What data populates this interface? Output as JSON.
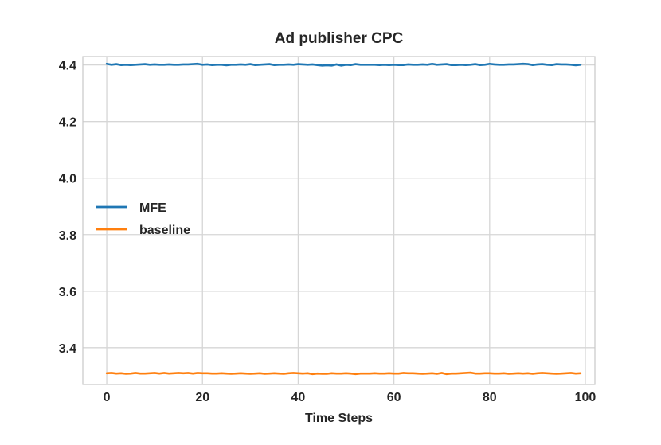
{
  "chart_data": {
    "type": "line",
    "title": "Ad publisher CPC",
    "xlabel": "Time Steps",
    "ylabel": "",
    "xlim": [
      -5,
      102
    ],
    "ylim": [
      3.27,
      4.43
    ],
    "x_ticks": [
      0,
      20,
      40,
      60,
      80,
      100
    ],
    "y_ticks": [
      3.4,
      3.6,
      3.8,
      4.0,
      4.2,
      4.4
    ],
    "x_tick_labels": [
      "0",
      "20",
      "40",
      "60",
      "80",
      "100"
    ],
    "y_tick_labels": [
      "3.4",
      "3.6",
      "3.8",
      "4.0",
      "4.2",
      "4.4"
    ],
    "grid": true,
    "legend_position": "center-left",
    "x": [
      0,
      1,
      2,
      3,
      4,
      5,
      6,
      7,
      8,
      9,
      10,
      11,
      12,
      13,
      14,
      15,
      16,
      17,
      18,
      19,
      20,
      21,
      22,
      23,
      24,
      25,
      26,
      27,
      28,
      29,
      30,
      31,
      32,
      33,
      34,
      35,
      36,
      37,
      38,
      39,
      40,
      41,
      42,
      43,
      44,
      45,
      46,
      47,
      48,
      49,
      50,
      51,
      52,
      53,
      54,
      55,
      56,
      57,
      58,
      59,
      60,
      61,
      62,
      63,
      64,
      65,
      66,
      67,
      68,
      69,
      70,
      71,
      72,
      73,
      74,
      75,
      76,
      77,
      78,
      79,
      80,
      81,
      82,
      83,
      84,
      85,
      86,
      87,
      88,
      89,
      90,
      91,
      92,
      93,
      94,
      95,
      96,
      97,
      98,
      99
    ],
    "series": [
      {
        "name": "MFE",
        "color": "#1f77b4",
        "values": [
          4.404,
          4.401,
          4.403,
          4.4,
          4.401,
          4.4,
          4.401,
          4.402,
          4.403,
          4.401,
          4.402,
          4.401,
          4.401,
          4.402,
          4.401,
          4.401,
          4.402,
          4.402,
          4.403,
          4.404,
          4.401,
          4.402,
          4.4,
          4.401,
          4.401,
          4.399,
          4.401,
          4.401,
          4.402,
          4.401,
          4.403,
          4.4,
          4.401,
          4.402,
          4.403,
          4.4,
          4.401,
          4.401,
          4.402,
          4.401,
          4.403,
          4.402,
          4.401,
          4.402,
          4.4,
          4.398,
          4.399,
          4.398,
          4.402,
          4.398,
          4.401,
          4.4,
          4.403,
          4.401,
          4.401,
          4.401,
          4.401,
          4.4,
          4.401,
          4.4,
          4.401,
          4.4,
          4.4,
          4.402,
          4.401,
          4.401,
          4.402,
          4.401,
          4.404,
          4.401,
          4.402,
          4.403,
          4.4,
          4.4,
          4.401,
          4.4,
          4.401,
          4.403,
          4.4,
          4.401,
          4.404,
          4.402,
          4.401,
          4.401,
          4.402,
          4.402,
          4.403,
          4.404,
          4.403,
          4.4,
          4.402,
          4.403,
          4.401,
          4.4,
          4.403,
          4.402,
          4.402,
          4.401,
          4.399,
          4.401
        ]
      },
      {
        "name": "baseline",
        "color": "#ff7f0e",
        "values": [
          3.31,
          3.311,
          3.309,
          3.31,
          3.308,
          3.309,
          3.311,
          3.309,
          3.309,
          3.31,
          3.311,
          3.309,
          3.311,
          3.309,
          3.31,
          3.311,
          3.31,
          3.311,
          3.309,
          3.311,
          3.31,
          3.31,
          3.309,
          3.309,
          3.31,
          3.309,
          3.308,
          3.309,
          3.31,
          3.309,
          3.308,
          3.309,
          3.31,
          3.308,
          3.309,
          3.31,
          3.309,
          3.308,
          3.31,
          3.311,
          3.31,
          3.309,
          3.31,
          3.307,
          3.309,
          3.308,
          3.308,
          3.31,
          3.309,
          3.309,
          3.31,
          3.309,
          3.307,
          3.309,
          3.309,
          3.309,
          3.31,
          3.309,
          3.309,
          3.31,
          3.309,
          3.309,
          3.311,
          3.31,
          3.31,
          3.309,
          3.308,
          3.309,
          3.31,
          3.308,
          3.311,
          3.307,
          3.309,
          3.309,
          3.31,
          3.311,
          3.312,
          3.309,
          3.309,
          3.31,
          3.31,
          3.309,
          3.309,
          3.31,
          3.308,
          3.309,
          3.31,
          3.309,
          3.31,
          3.308,
          3.31,
          3.311,
          3.31,
          3.309,
          3.308,
          3.309,
          3.31,
          3.311,
          3.309,
          3.31
        ]
      }
    ]
  }
}
